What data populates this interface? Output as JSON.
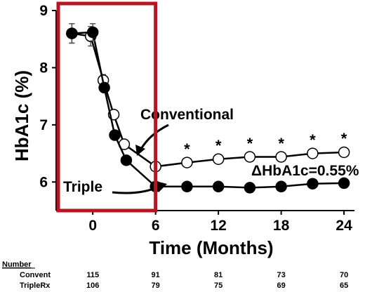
{
  "chart_data": {
    "type": "line",
    "xlabel": "Time (Months)",
    "ylabel": "HbA1c (%)",
    "xlim": [
      -3.5,
      25
    ],
    "ylim": [
      5.5,
      9
    ],
    "x_ticks": [
      0,
      6,
      12,
      18,
      24
    ],
    "y_ticks": [
      6,
      7,
      8,
      9
    ],
    "grid": false,
    "series": [
      {
        "name": "Conventional",
        "marker": "open-circle",
        "x": [
          -2,
          -0.2,
          1,
          2,
          3,
          6,
          9,
          12,
          15,
          18,
          21,
          24
        ],
        "y": [
          8.6,
          8.55,
          7.78,
          7.18,
          6.66,
          6.27,
          6.34,
          6.4,
          6.44,
          6.44,
          6.5,
          6.52
        ],
        "err": [
          0.17,
          0.17,
          0.1,
          0.08,
          0.07,
          0.06,
          0.07,
          0.07,
          0.07,
          0.07,
          0.07,
          0.07
        ]
      },
      {
        "name": "Triple",
        "marker": "filled-circle",
        "x": [
          -2,
          0,
          1.1,
          2.1,
          3.2,
          6,
          9,
          12,
          15,
          18,
          21,
          24
        ],
        "y": [
          8.6,
          8.62,
          7.65,
          6.82,
          6.38,
          5.92,
          5.92,
          5.92,
          5.9,
          5.92,
          5.97,
          5.98
        ],
        "err": [
          0.17,
          0.15,
          0.08,
          0.07,
          0.06,
          0.06,
          0.06,
          0.06,
          0.06,
          0.06,
          0.06,
          0.06
        ]
      }
    ],
    "significance_marks": {
      "symbol": "*",
      "x": [
        9,
        12,
        15,
        18,
        21,
        24
      ]
    },
    "annotations": {
      "conventional_label": "Conventional",
      "triple_label": "Triple",
      "delta_label": "ΔHbA1c=0.55%"
    },
    "highlight_box": {
      "x_from": -3.5,
      "x_to": 6,
      "color": "#c0121e"
    }
  },
  "number_table": {
    "header": "Number",
    "rows": [
      {
        "label": "Convent",
        "values": [
          "115",
          "91",
          "81",
          "73",
          "70"
        ]
      },
      {
        "label": "TripleRx",
        "values": [
          "106",
          "79",
          "75",
          "69",
          "65"
        ]
      }
    ]
  }
}
